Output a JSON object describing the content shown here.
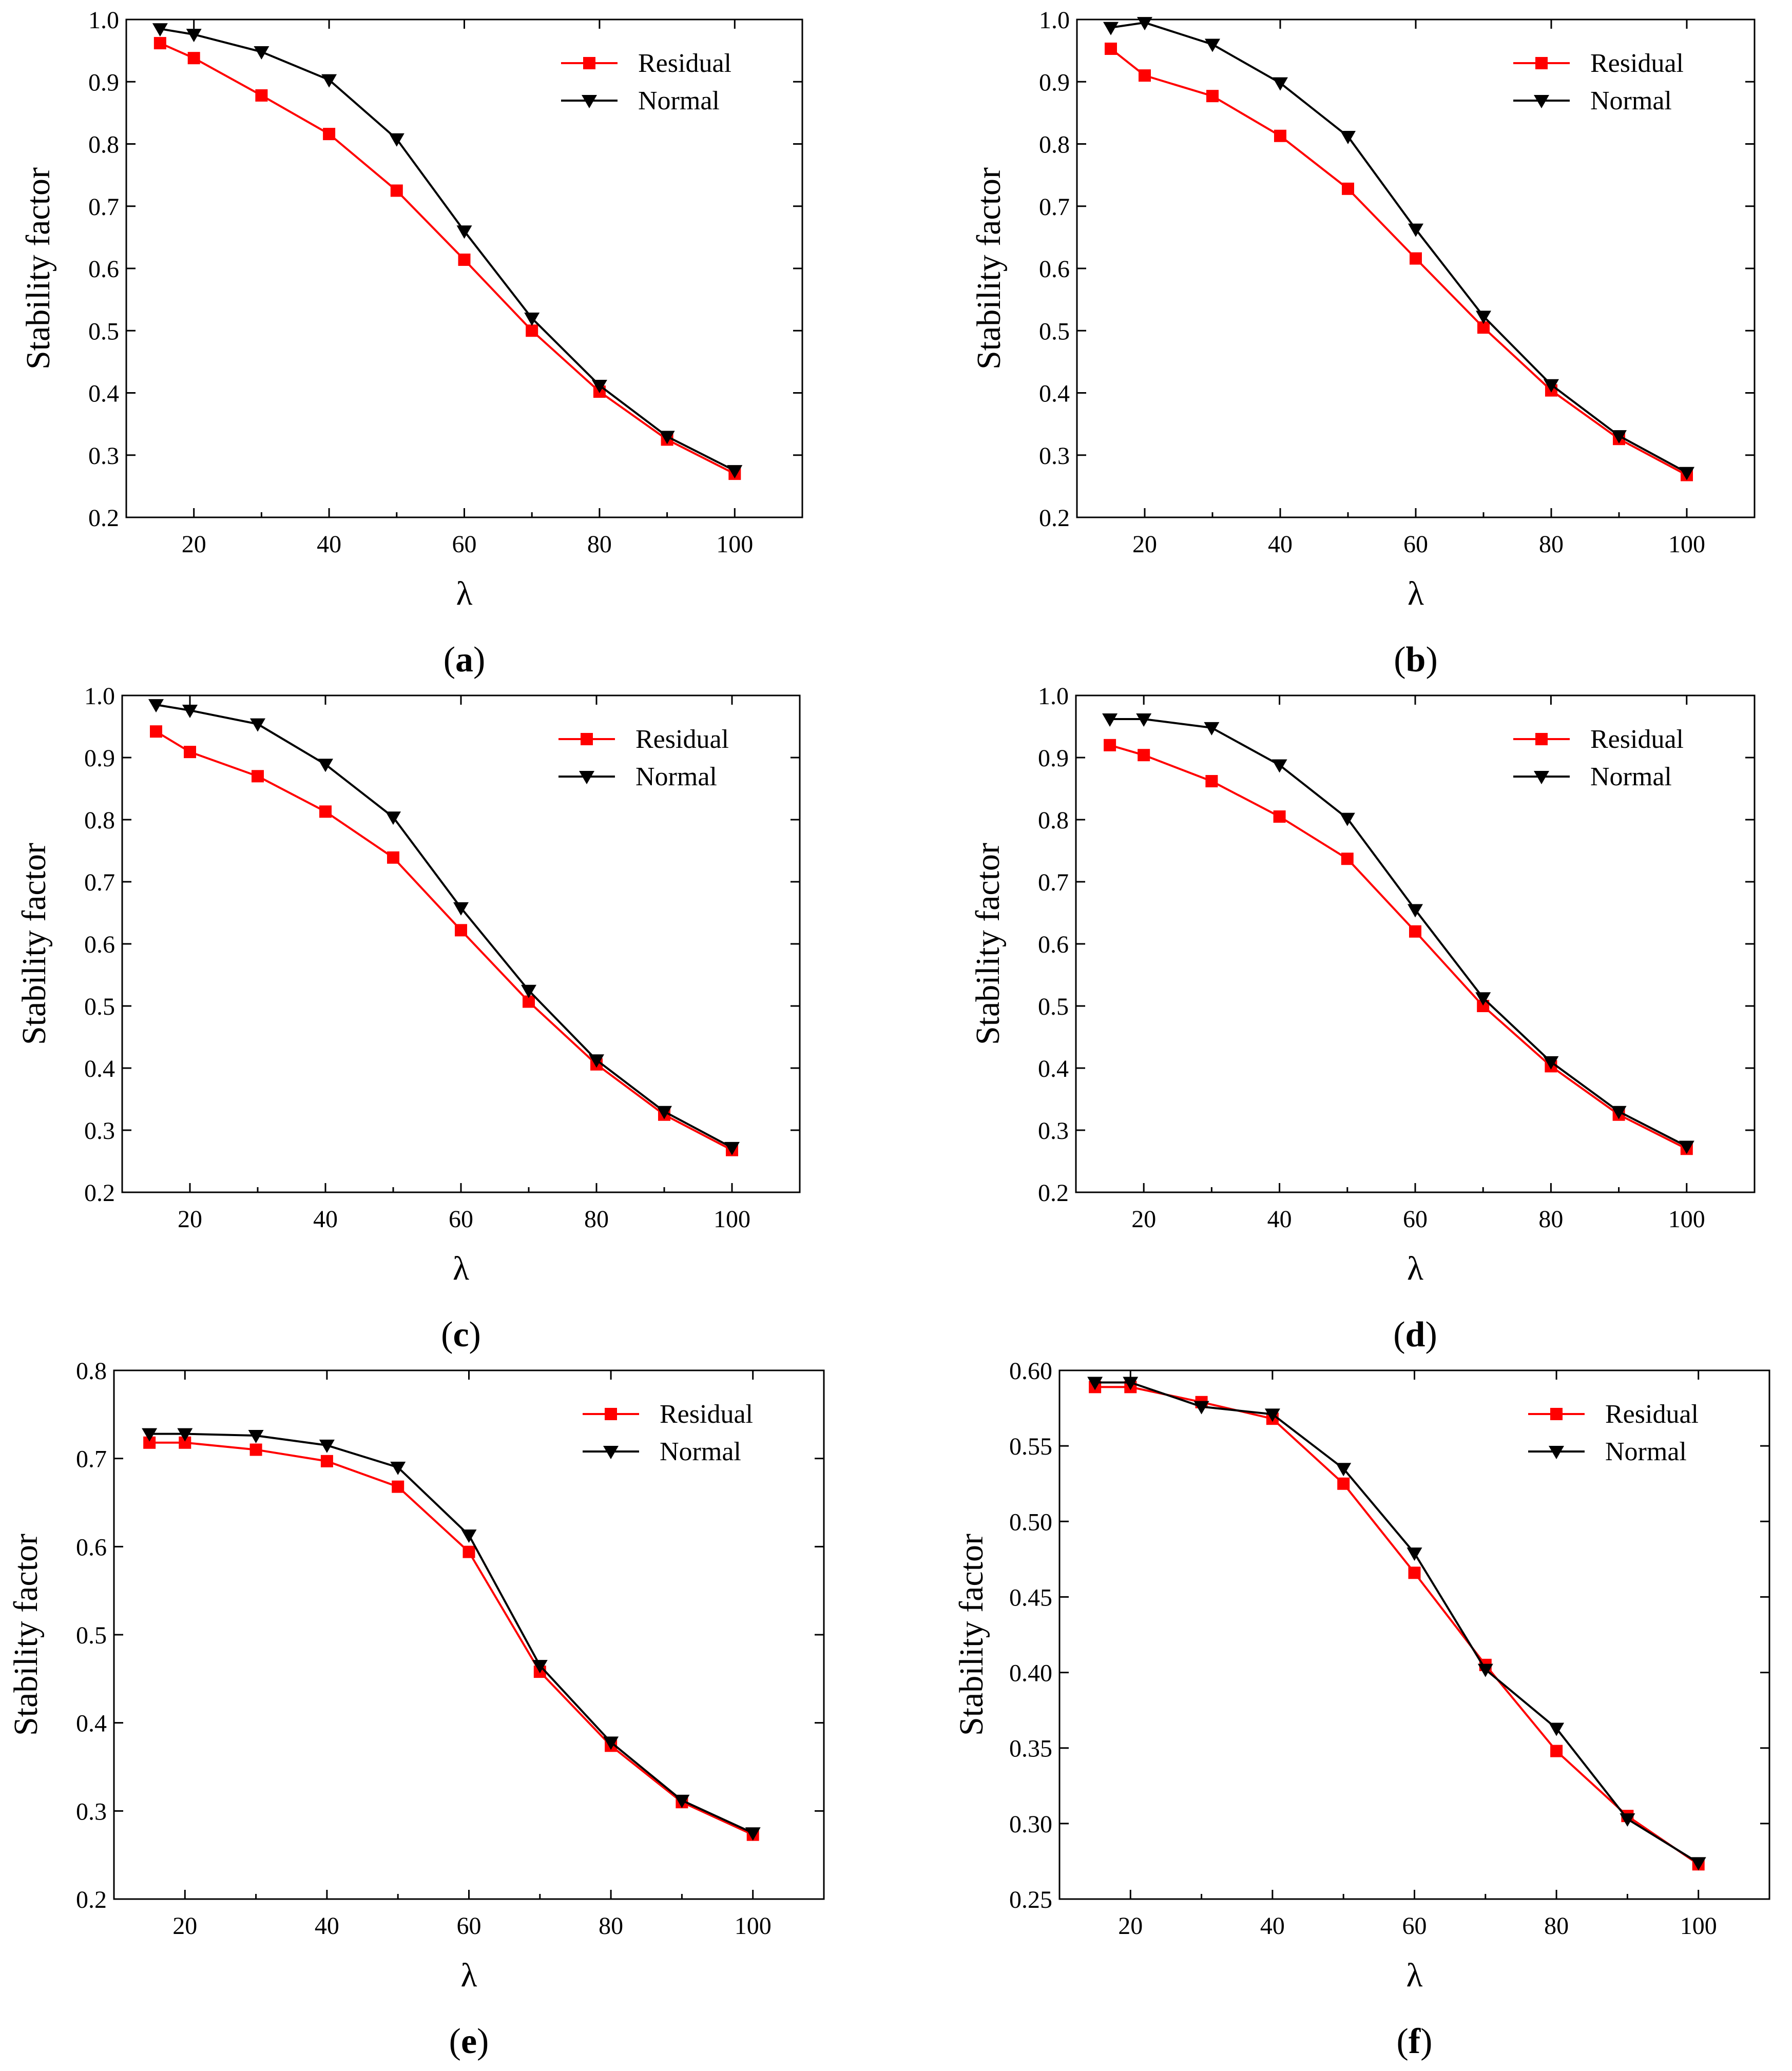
{
  "colors": {
    "residual": "#ff0000",
    "normal": "#000000",
    "axis": "#000000"
  },
  "chart_data": [
    {
      "id": "a",
      "caption_letter": "a",
      "type": "line",
      "xlabel": "λ",
      "ylabel": "Stability factor",
      "xlim": [
        10,
        110
      ],
      "ylim": [
        0.2,
        1.0
      ],
      "xticks": [
        20,
        40,
        60,
        80,
        100
      ],
      "yticks": [
        0.2,
        0.3,
        0.4,
        0.5,
        0.6,
        0.7,
        0.8,
        0.9,
        1.0
      ],
      "ytick_labels": [
        "0.2",
        "0.3",
        "0.4",
        "0.5",
        "0.6",
        "0.7",
        "0.8",
        "0.9",
        "1.0"
      ],
      "x": [
        15,
        20,
        30,
        40,
        50,
        60,
        70,
        80,
        90,
        100
      ],
      "legend_position": "top-right",
      "series": [
        {
          "name": "Residual",
          "marker": "square",
          "values": [
            0.962,
            0.938,
            0.878,
            0.816,
            0.725,
            0.614,
            0.5,
            0.402,
            0.325,
            0.27
          ]
        },
        {
          "name": "Normal",
          "marker": "triangle-down",
          "values": [
            0.985,
            0.976,
            0.948,
            0.903,
            0.808,
            0.66,
            0.52,
            0.412,
            0.33,
            0.275
          ]
        }
      ]
    },
    {
      "id": "b",
      "caption_letter": "b",
      "type": "line",
      "xlabel": "λ",
      "ylabel": "Stability factor",
      "xlim": [
        10,
        110
      ],
      "ylim": [
        0.2,
        1.0
      ],
      "xticks": [
        20,
        40,
        60,
        80,
        100
      ],
      "yticks": [
        0.2,
        0.3,
        0.4,
        0.5,
        0.6,
        0.7,
        0.8,
        0.9,
        1.0
      ],
      "ytick_labels": [
        "0.2",
        "0.3",
        "0.4",
        "0.5",
        "0.6",
        "0.7",
        "0.8",
        "0.9",
        "1.0"
      ],
      "x": [
        15,
        20,
        30,
        40,
        50,
        60,
        70,
        80,
        90,
        100
      ],
      "legend_position": "top-right",
      "series": [
        {
          "name": "Residual",
          "marker": "square",
          "values": [
            0.953,
            0.91,
            0.877,
            0.813,
            0.728,
            0.616,
            0.505,
            0.404,
            0.326,
            0.268
          ]
        },
        {
          "name": "Normal",
          "marker": "triangle-down",
          "values": [
            0.987,
            0.995,
            0.96,
            0.898,
            0.812,
            0.663,
            0.523,
            0.413,
            0.331,
            0.272
          ]
        }
      ]
    },
    {
      "id": "c",
      "caption_letter": "c",
      "type": "line",
      "xlabel": "λ",
      "ylabel": "Stability factor",
      "xlim": [
        10,
        110
      ],
      "ylim": [
        0.2,
        1.0
      ],
      "xticks": [
        20,
        40,
        60,
        80,
        100
      ],
      "yticks": [
        0.2,
        0.3,
        0.4,
        0.5,
        0.6,
        0.7,
        0.8,
        0.9,
        1.0
      ],
      "ytick_labels": [
        "0.2",
        "0.3",
        "0.4",
        "0.5",
        "0.6",
        "0.7",
        "0.8",
        "0.9",
        "1.0"
      ],
      "x": [
        15,
        20,
        30,
        40,
        50,
        60,
        70,
        80,
        90,
        100
      ],
      "legend_position": "top-right",
      "series": [
        {
          "name": "Residual",
          "marker": "square",
          "values": [
            0.942,
            0.909,
            0.87,
            0.813,
            0.739,
            0.622,
            0.507,
            0.406,
            0.325,
            0.268
          ]
        },
        {
          "name": "Normal",
          "marker": "triangle-down",
          "values": [
            0.985,
            0.976,
            0.954,
            0.889,
            0.804,
            0.658,
            0.525,
            0.413,
            0.33,
            0.272
          ]
        }
      ]
    },
    {
      "id": "d",
      "caption_letter": "d",
      "type": "line",
      "xlabel": "λ",
      "ylabel": "Stability factor",
      "xlim": [
        10,
        110
      ],
      "ylim": [
        0.2,
        1.0
      ],
      "xticks": [
        20,
        40,
        60,
        80,
        100
      ],
      "yticks": [
        0.2,
        0.3,
        0.4,
        0.5,
        0.6,
        0.7,
        0.8,
        0.9,
        1.0
      ],
      "ytick_labels": [
        "0.2",
        "0.3",
        "0.4",
        "0.5",
        "0.6",
        "0.7",
        "0.8",
        "0.9",
        "1.0"
      ],
      "x": [
        15,
        20,
        30,
        40,
        50,
        60,
        70,
        80,
        90,
        100
      ],
      "legend_position": "top-right",
      "series": [
        {
          "name": "Residual",
          "marker": "square",
          "values": [
            0.92,
            0.904,
            0.862,
            0.805,
            0.737,
            0.62,
            0.5,
            0.403,
            0.325,
            0.27
          ]
        },
        {
          "name": "Normal",
          "marker": "triangle-down",
          "values": [
            0.962,
            0.962,
            0.948,
            0.888,
            0.802,
            0.655,
            0.513,
            0.41,
            0.33,
            0.274
          ]
        }
      ]
    },
    {
      "id": "e",
      "caption_letter": "e",
      "type": "line",
      "xlabel": "λ",
      "ylabel": "Stability factor",
      "xlim": [
        10,
        110
      ],
      "ylim": [
        0.2,
        0.8
      ],
      "xticks": [
        20,
        40,
        60,
        80,
        100
      ],
      "yticks": [
        0.2,
        0.3,
        0.4,
        0.5,
        0.6,
        0.7,
        0.8
      ],
      "ytick_labels": [
        "0.2",
        "0.3",
        "0.4",
        "0.5",
        "0.6",
        "0.7",
        "0.8"
      ],
      "x": [
        15,
        20,
        30,
        40,
        50,
        60,
        70,
        80,
        90,
        100
      ],
      "legend_position": "top-right",
      "series": [
        {
          "name": "Residual",
          "marker": "square",
          "values": [
            0.718,
            0.718,
            0.71,
            0.697,
            0.668,
            0.594,
            0.458,
            0.374,
            0.31,
            0.273
          ]
        },
        {
          "name": "Normal",
          "marker": "triangle-down",
          "values": [
            0.728,
            0.728,
            0.726,
            0.715,
            0.69,
            0.613,
            0.465,
            0.378,
            0.312,
            0.275
          ]
        }
      ]
    },
    {
      "id": "f",
      "caption_letter": "f",
      "type": "line",
      "xlabel": "λ",
      "ylabel": "Stability factor",
      "xlim": [
        10,
        110
      ],
      "ylim": [
        0.25,
        0.6
      ],
      "xticks": [
        20,
        40,
        60,
        80,
        100
      ],
      "yticks": [
        0.25,
        0.3,
        0.35,
        0.4,
        0.45,
        0.5,
        0.55,
        0.6
      ],
      "ytick_labels": [
        "0.25",
        "0.30",
        "0.35",
        "0.40",
        "0.45",
        "0.50",
        "0.55",
        "0.60"
      ],
      "x": [
        15,
        20,
        30,
        40,
        50,
        60,
        70,
        80,
        90,
        100
      ],
      "legend_position": "top-right",
      "series": [
        {
          "name": "Residual",
          "marker": "square",
          "values": [
            0.589,
            0.589,
            0.579,
            0.568,
            0.525,
            0.466,
            0.405,
            0.348,
            0.305,
            0.273
          ]
        },
        {
          "name": "Normal",
          "marker": "triangle-down",
          "values": [
            0.592,
            0.592,
            0.576,
            0.571,
            0.535,
            0.479,
            0.402,
            0.363,
            0.303,
            0.274
          ]
        }
      ]
    }
  ]
}
